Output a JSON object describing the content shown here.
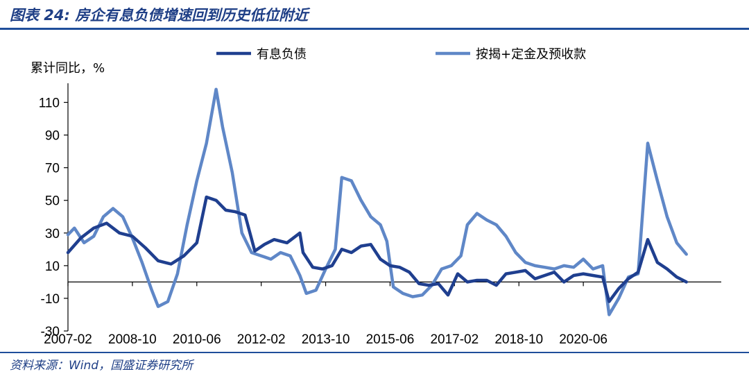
{
  "header": {
    "title": "图表 24:  房企有息负债增速回到历史低位附近"
  },
  "footer": {
    "source": "资料来源：Wind，国盛证券研究所"
  },
  "chart_data": {
    "type": "line",
    "title": "图表 24:  房企有息负债增速回到历史低位附近",
    "ylabel": "累计同比，%",
    "xlabel": "",
    "ylim": [
      -30,
      120
    ],
    "yticks": [
      -30,
      -10,
      10,
      30,
      50,
      70,
      90,
      110
    ],
    "x_tick_labels": [
      "2007-02",
      "2008-10",
      "2010-06",
      "2012-02",
      "2013-10",
      "2015-06",
      "2017-02",
      "2018-10",
      "2020-06"
    ],
    "x_start": "2007-02",
    "x_end": "2022-02",
    "legend": "top",
    "grid": false,
    "series": [
      {
        "name": "有息负债",
        "color": "#1f3f8f",
        "points": [
          [
            "2007-02",
            18
          ],
          [
            "2007-06",
            27
          ],
          [
            "2007-10",
            33
          ],
          [
            "2008-02",
            36
          ],
          [
            "2008-06",
            30
          ],
          [
            "2008-10",
            28
          ],
          [
            "2009-02",
            21
          ],
          [
            "2009-06",
            13
          ],
          [
            "2009-10",
            11
          ],
          [
            "2010-02",
            16
          ],
          [
            "2010-06",
            24
          ],
          [
            "2010-09",
            52
          ],
          [
            "2010-12",
            50
          ],
          [
            "2011-03",
            44
          ],
          [
            "2011-06",
            43
          ],
          [
            "2011-09",
            41
          ],
          [
            "2011-12",
            19
          ],
          [
            "2012-03",
            23
          ],
          [
            "2012-06",
            26
          ],
          [
            "2012-10",
            24
          ],
          [
            "2013-02",
            30
          ],
          [
            "2013-03",
            18
          ],
          [
            "2013-06",
            9
          ],
          [
            "2013-09",
            8
          ],
          [
            "2013-12",
            10
          ],
          [
            "2014-03",
            20
          ],
          [
            "2014-06",
            18
          ],
          [
            "2014-09",
            22
          ],
          [
            "2014-12",
            23
          ],
          [
            "2015-03",
            14
          ],
          [
            "2015-06",
            10
          ],
          [
            "2015-09",
            9
          ],
          [
            "2015-12",
            6
          ],
          [
            "2016-03",
            -1
          ],
          [
            "2016-06",
            -2
          ],
          [
            "2016-09",
            -1
          ],
          [
            "2016-12",
            -8
          ],
          [
            "2017-03",
            5
          ],
          [
            "2017-06",
            0
          ],
          [
            "2017-09",
            1
          ],
          [
            "2017-12",
            1
          ],
          [
            "2018-03",
            -2
          ],
          [
            "2018-06",
            5
          ],
          [
            "2018-09",
            6
          ],
          [
            "2018-12",
            7
          ],
          [
            "2019-03",
            2
          ],
          [
            "2019-06",
            4
          ],
          [
            "2019-09",
            6
          ],
          [
            "2019-12",
            0
          ],
          [
            "2020-03",
            4
          ],
          [
            "2020-06",
            5
          ],
          [
            "2020-09",
            4
          ],
          [
            "2020-12",
            3
          ],
          [
            "2021-02",
            -12
          ],
          [
            "2021-05",
            -4
          ],
          [
            "2021-08",
            2
          ],
          [
            "2021-11",
            6
          ],
          [
            "2022-02",
            26
          ],
          [
            "2022-05",
            12
          ],
          [
            "2022-08",
            8
          ],
          [
            "2022-11",
            3
          ],
          [
            "2023-02",
            0
          ]
        ]
      },
      {
        "name": "按揭+定金及预收款",
        "color": "#5f87c7",
        "points": [
          [
            "2007-02",
            29
          ],
          [
            "2007-04",
            33
          ],
          [
            "2007-07",
            24
          ],
          [
            "2007-10",
            28
          ],
          [
            "2008-01",
            40
          ],
          [
            "2008-04",
            45
          ],
          [
            "2008-07",
            40
          ],
          [
            "2008-10",
            27
          ],
          [
            "2009-01",
            12
          ],
          [
            "2009-04",
            -5
          ],
          [
            "2009-06",
            -15
          ],
          [
            "2009-09",
            -12
          ],
          [
            "2009-12",
            5
          ],
          [
            "2010-03",
            35
          ],
          [
            "2010-06",
            62
          ],
          [
            "2010-09",
            85
          ],
          [
            "2010-12",
            118
          ],
          [
            "2011-02",
            95
          ],
          [
            "2011-05",
            67
          ],
          [
            "2011-08",
            30
          ],
          [
            "2011-11",
            18
          ],
          [
            "2012-02",
            16
          ],
          [
            "2012-05",
            14
          ],
          [
            "2012-08",
            18
          ],
          [
            "2012-11",
            16
          ],
          [
            "2013-02",
            4
          ],
          [
            "2013-04",
            -7
          ],
          [
            "2013-07",
            -5
          ],
          [
            "2013-10",
            8
          ],
          [
            "2014-01",
            20
          ],
          [
            "2014-03",
            64
          ],
          [
            "2014-06",
            62
          ],
          [
            "2014-09",
            50
          ],
          [
            "2014-12",
            40
          ],
          [
            "2015-03",
            35
          ],
          [
            "2015-05",
            25
          ],
          [
            "2015-07",
            -3
          ],
          [
            "2015-10",
            -7
          ],
          [
            "2016-01",
            -9
          ],
          [
            "2016-04",
            -8
          ],
          [
            "2016-07",
            -2
          ],
          [
            "2016-10",
            8
          ],
          [
            "2017-01",
            10
          ],
          [
            "2017-04",
            16
          ],
          [
            "2017-06",
            35
          ],
          [
            "2017-09",
            42
          ],
          [
            "2017-12",
            38
          ],
          [
            "2018-03",
            35
          ],
          [
            "2018-06",
            28
          ],
          [
            "2018-09",
            18
          ],
          [
            "2018-12",
            12
          ],
          [
            "2019-03",
            10
          ],
          [
            "2019-06",
            9
          ],
          [
            "2019-09",
            8
          ],
          [
            "2019-12",
            10
          ],
          [
            "2020-03",
            9
          ],
          [
            "2020-06",
            14
          ],
          [
            "2020-09",
            8
          ],
          [
            "2020-12",
            10
          ],
          [
            "2021-02",
            -20
          ],
          [
            "2021-05",
            -10
          ],
          [
            "2021-08",
            3
          ],
          [
            "2021-11",
            5
          ],
          [
            "2022-02",
            85
          ],
          [
            "2022-05",
            62
          ],
          [
            "2022-08",
            40
          ],
          [
            "2022-11",
            24
          ],
          [
            "2023-02",
            17
          ]
        ]
      }
    ]
  }
}
